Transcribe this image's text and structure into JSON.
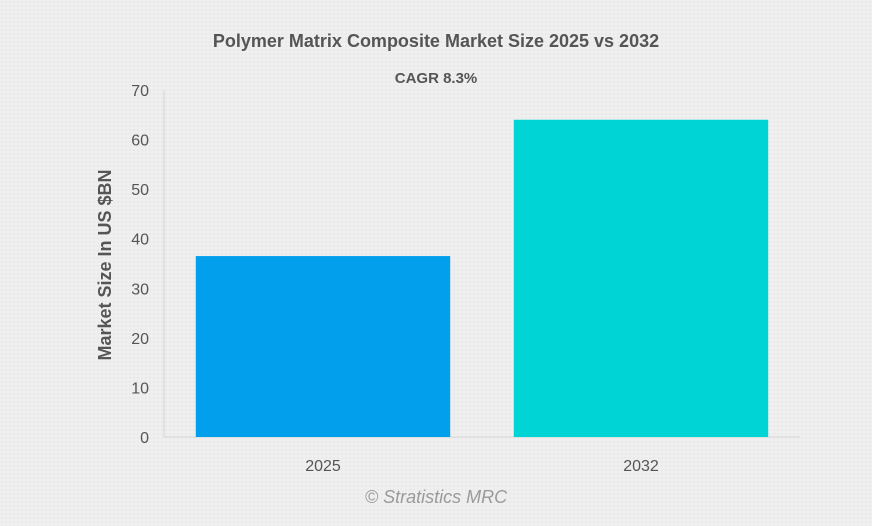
{
  "chart_data": {
    "type": "bar",
    "title": "Polymer Matrix Composite Market Size 2025 vs 2032",
    "subtitle": "CAGR 8.3%",
    "xlabel": "",
    "ylabel": "Market Size In US $BN",
    "categories": [
      "2025",
      "2032"
    ],
    "values": [
      36.5,
      64
    ],
    "bar_colors": [
      "#029fec",
      "#00d4d4"
    ],
    "ylim": [
      0,
      70
    ],
    "yticks": [
      0,
      10,
      20,
      30,
      40,
      50,
      60,
      70
    ],
    "grid": false,
    "legend": "none"
  },
  "watermark": "© Stratistics MRC"
}
